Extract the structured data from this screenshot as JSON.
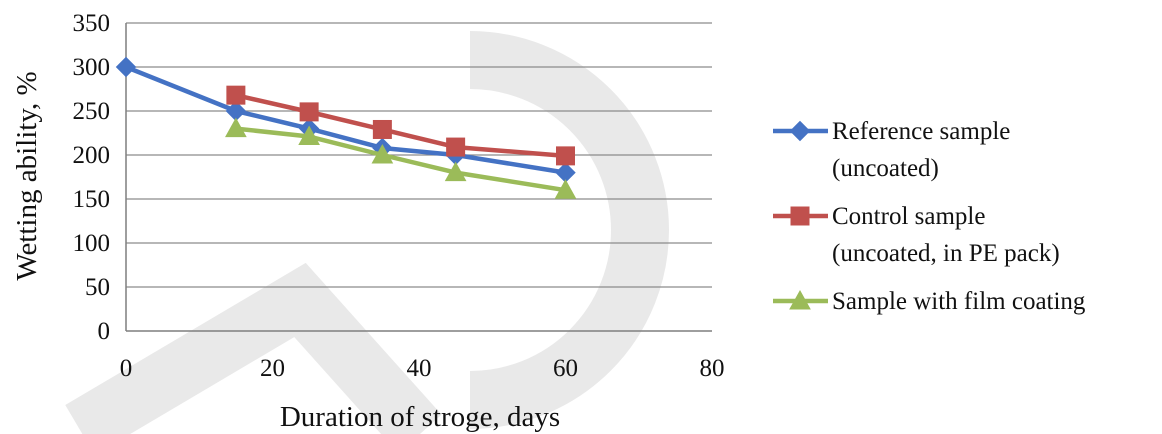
{
  "chart_data": {
    "type": "line",
    "title": "",
    "xlabel": "Duration  of  stroge,  days",
    "ylabel": "Wetting  ability,  %",
    "xlim": [
      0,
      80
    ],
    "ylim": [
      0,
      350
    ],
    "x_ticks": [
      "0",
      "20",
      "40",
      "60",
      "80"
    ],
    "y_ticks": [
      "0",
      "50",
      "100",
      "150",
      "200",
      "250",
      "300",
      "350"
    ],
    "grid": "horizontal",
    "legend_position": "right",
    "series": [
      {
        "name_lines": [
          "Reference sample",
          "(uncoated)"
        ],
        "color": "#4472C4",
        "marker": "diamond",
        "points": [
          [
            0,
            300
          ],
          [
            15,
            250
          ],
          [
            25,
            230
          ],
          [
            35,
            208
          ],
          [
            45,
            200
          ],
          [
            60,
            180
          ]
        ]
      },
      {
        "name_lines": [
          "Control sample",
          "(uncoated, in PE pack)"
        ],
        "color": "#C0504D",
        "marker": "square",
        "points": [
          [
            15,
            268
          ],
          [
            25,
            249
          ],
          [
            35,
            229
          ],
          [
            45,
            209
          ],
          [
            60,
            199
          ]
        ]
      },
      {
        "name_lines": [
          "Sample with film coating"
        ],
        "color": "#9BBB59",
        "marker": "triangle",
        "points": [
          [
            15,
            230
          ],
          [
            25,
            221
          ],
          [
            35,
            200
          ],
          [
            45,
            180
          ],
          [
            60,
            160
          ]
        ]
      }
    ]
  }
}
